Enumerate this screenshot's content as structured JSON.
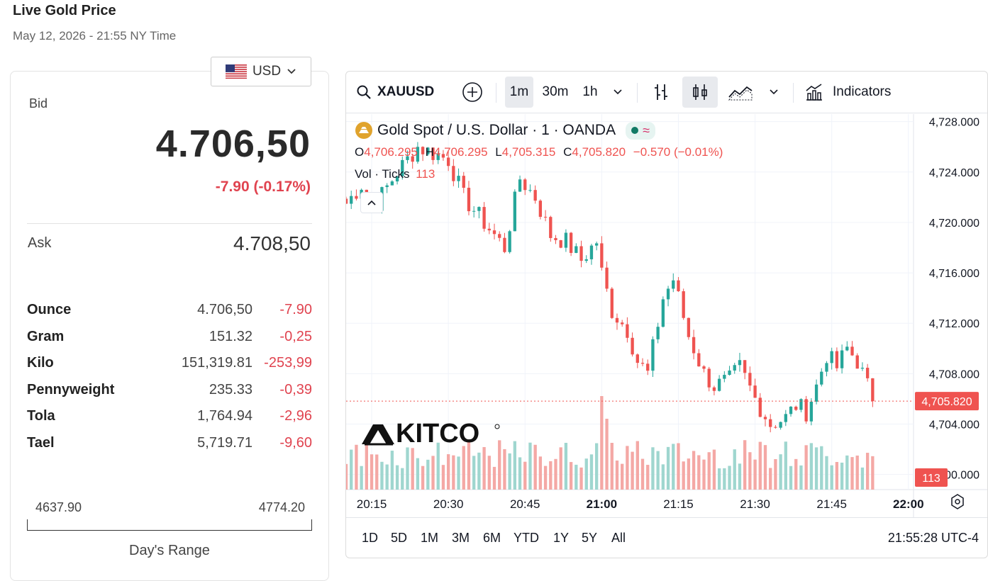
{
  "page": {
    "title": "Live Gold Price",
    "subtitle": "May 12, 2026 - 21:55 NY Time"
  },
  "currency": {
    "selected": "USD",
    "flag_icon": "us-flag-icon"
  },
  "quote": {
    "bid_label": "Bid",
    "bid": "4.706,50",
    "change": "-7.90 (-0.17%)",
    "ask_label": "Ask",
    "ask": "4.708,50"
  },
  "units": [
    {
      "name": "Ounce",
      "value": "4.706,50",
      "change": "-7.90"
    },
    {
      "name": "Gram",
      "value": "151.32",
      "change": "-0,25"
    },
    {
      "name": "Kilo",
      "value": "151,319.81",
      "change": "-253,99"
    },
    {
      "name": "Pennyweight",
      "value": "235.33",
      "change": "-0,39"
    },
    {
      "name": "Tola",
      "value": "1,764.94",
      "change": "-2,96"
    },
    {
      "name": "Tael",
      "value": "5,719.71",
      "change": "-9,60"
    }
  ],
  "range": {
    "low": "4637.90",
    "high": "4774.20",
    "label": "Day's Range"
  },
  "toolbar": {
    "symbol": "XAUUSD",
    "intervals": [
      "1m",
      "30m",
      "1h"
    ],
    "active_interval": "1m",
    "indicators_label": "Indicators"
  },
  "legend": {
    "title": "Gold Spot / U.S. Dollar · 1 · OANDA",
    "o_label": "O",
    "o": "4,706.295",
    "h_label": "H",
    "h": "4,706.295",
    "l_label": "L",
    "l": "4,705.315",
    "c_label": "C",
    "c": "4,705.820",
    "change": "−0.570 (−0.01%)",
    "vol_label": "Vol · Ticks",
    "vol": "113"
  },
  "watermark": "KITCO",
  "colors": {
    "up": "#26a69a",
    "down": "#ef5350",
    "vol_up": "#9fd6cf",
    "vol_down": "#f4a8a5"
  },
  "chart_data": {
    "type": "candlestick",
    "title": "Gold Spot / U.S. Dollar · 1 · OANDA",
    "interval": "1m",
    "x_ticks": [
      "20:15",
      "20:30",
      "20:45",
      "21:00",
      "21:15",
      "21:30",
      "21:45",
      "22:00"
    ],
    "y_ticks": [
      "4,728.000",
      "4,724.000",
      "4,720.000",
      "4,716.000",
      "4,712.000",
      "4,708.000",
      "4,704.000",
      "4,700.000"
    ],
    "ylim": [
      4698.8,
      4728.6
    ],
    "x_range": [
      "20:10",
      "22:01"
    ],
    "last_price": "4,705.820",
    "last_volume": "113",
    "close_path": [
      [
        "20:10",
        4721.5
      ],
      [
        "20:13",
        4723.0
      ],
      [
        "20:15",
        4721.0
      ],
      [
        "20:20",
        4724.0
      ],
      [
        "20:24",
        4726.0
      ],
      [
        "20:30",
        4725.0
      ],
      [
        "20:33",
        4722.0
      ],
      [
        "20:37",
        4720.0
      ],
      [
        "20:41",
        4718.0
      ],
      [
        "20:44",
        4723.5
      ],
      [
        "20:47",
        4722.0
      ],
      [
        "20:50",
        4719.0
      ],
      [
        "20:53",
        4718.5
      ],
      [
        "20:56",
        4717.0
      ],
      [
        "20:59",
        4718.5
      ],
      [
        "21:00",
        4716.0
      ],
      [
        "21:02",
        4713.0
      ],
      [
        "21:05",
        4711.5
      ],
      [
        "21:07",
        4709.0
      ],
      [
        "21:09",
        4708.0
      ],
      [
        "21:12",
        4714.0
      ],
      [
        "21:14",
        4715.5
      ],
      [
        "21:17",
        4711.0
      ],
      [
        "21:20",
        4708.0
      ],
      [
        "21:22",
        4707.0
      ],
      [
        "21:25",
        4707.5
      ],
      [
        "21:27",
        4708.5
      ],
      [
        "21:30",
        4706.0
      ],
      [
        "21:33",
        4704.0
      ],
      [
        "21:36",
        4704.5
      ],
      [
        "21:38",
        4705.5
      ],
      [
        "21:40",
        4705.0
      ],
      [
        "21:42",
        4707.0
      ],
      [
        "21:44",
        4709.5
      ],
      [
        "21:46",
        4708.5
      ],
      [
        "21:48",
        4710.0
      ],
      [
        "21:50",
        4709.0
      ],
      [
        "21:52",
        4707.0
      ],
      [
        "21:53",
        4705.82
      ]
    ]
  },
  "periods": [
    "1D",
    "5D",
    "1M",
    "3M",
    "6M",
    "YTD",
    "1Y",
    "5Y",
    "All"
  ],
  "clock": "21:55:28 UTC-4"
}
